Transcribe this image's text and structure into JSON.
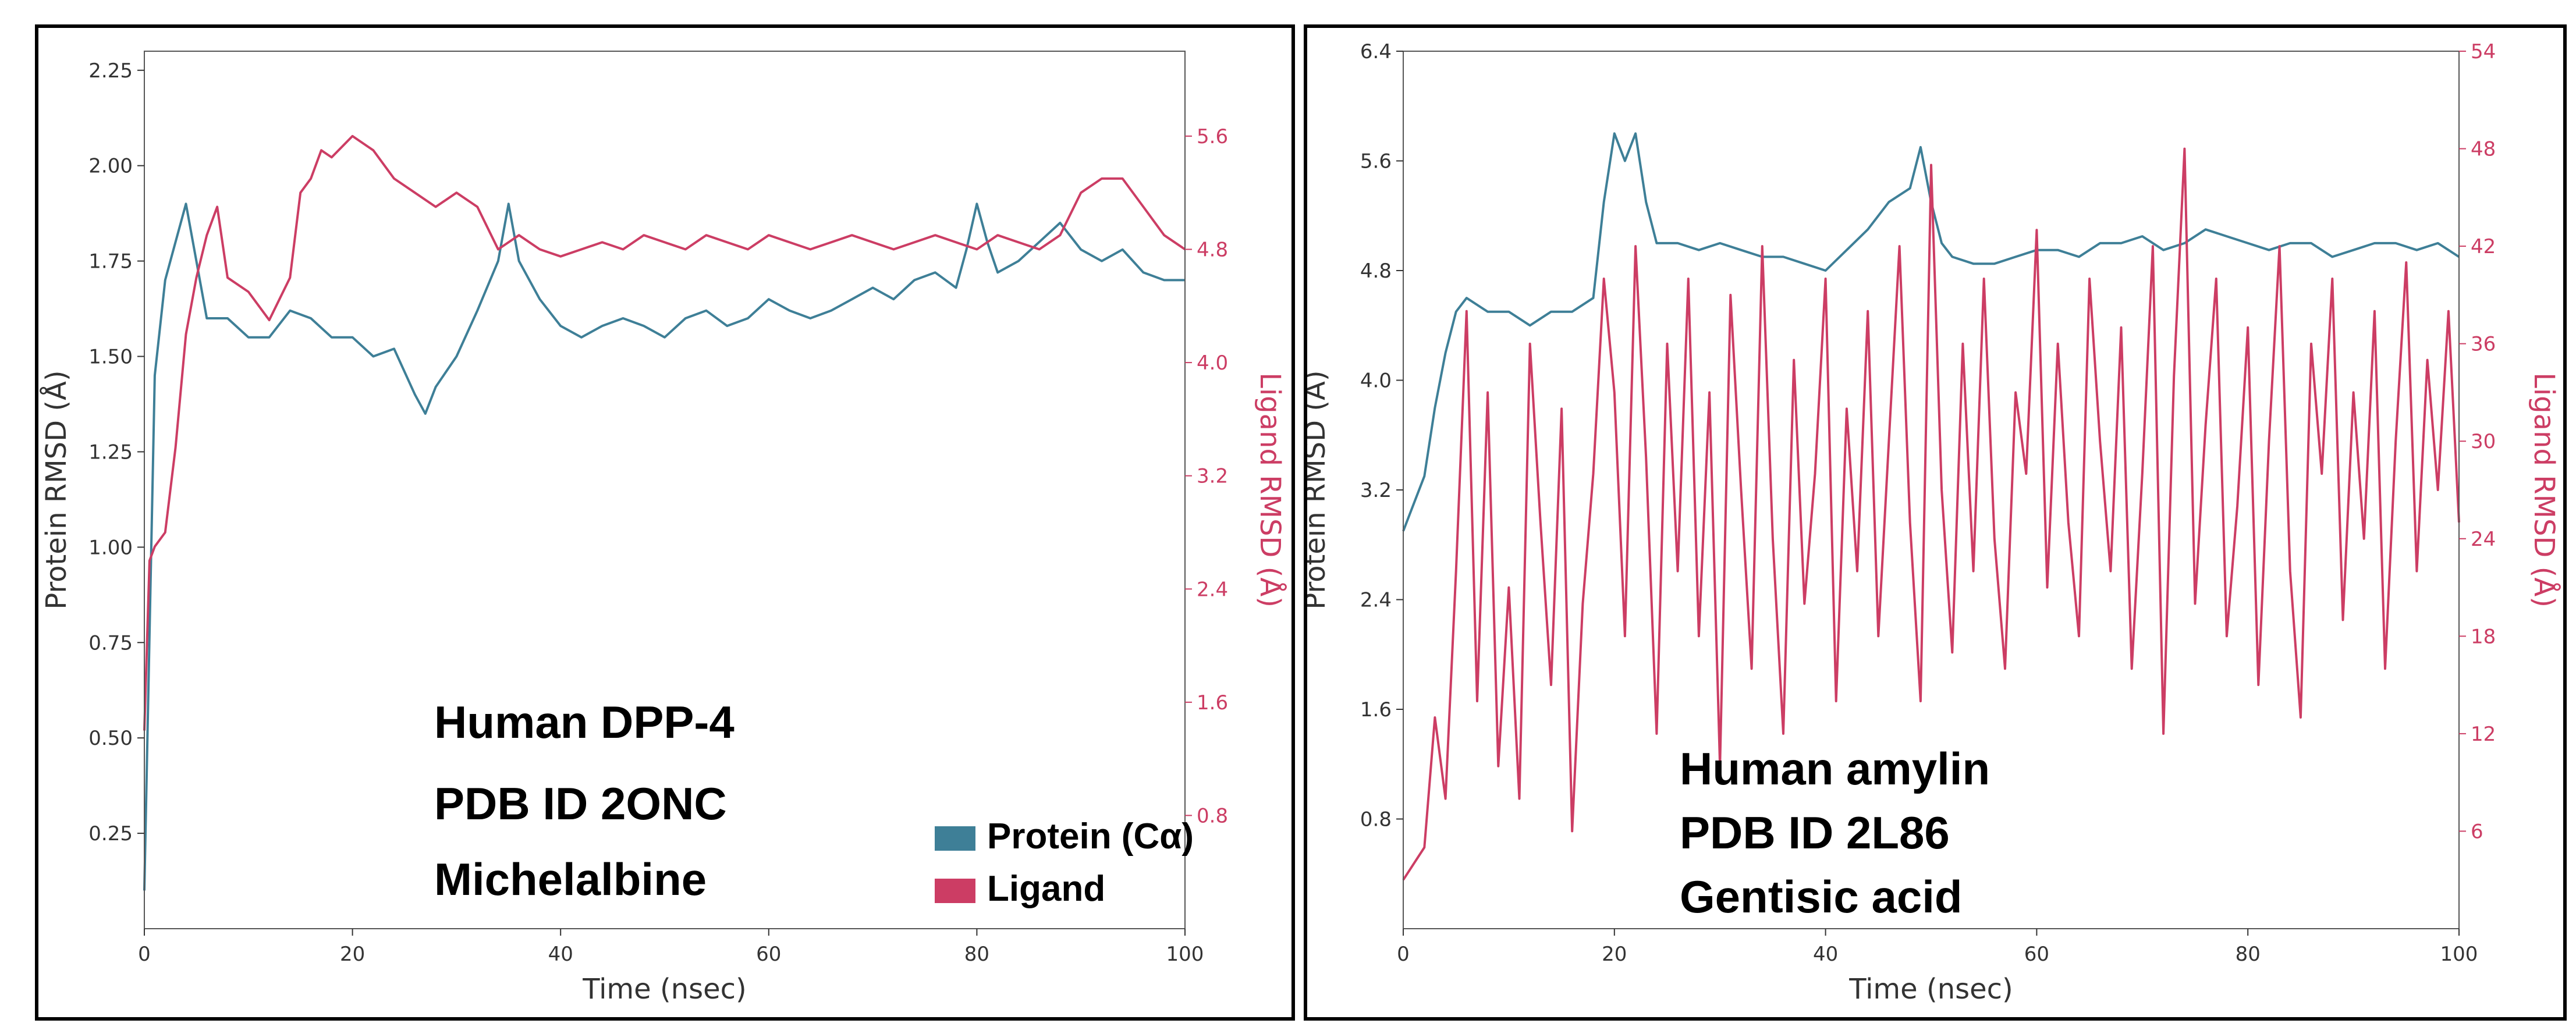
{
  "colors": {
    "protein": "#3e7f97",
    "ligand": "#cc3d64",
    "axis": "#333333"
  },
  "chart_data": [
    {
      "type": "line",
      "panel": "left",
      "xlabel": "Time (nsec)",
      "ylabel": "Protein RMSD (Å)",
      "y2label": "Ligand RMSD (Å)",
      "xlim": [
        0,
        100
      ],
      "ylim": [
        0,
        2.3
      ],
      "y2lim": [
        0,
        6.2
      ],
      "xticks": [
        "0",
        "20",
        "40",
        "60",
        "80",
        "100"
      ],
      "yticks": [
        "0.25",
        "0.50",
        "0.75",
        "1.00",
        "1.25",
        "1.50",
        "1.75",
        "2.00",
        "2.25"
      ],
      "y2ticks": [
        "0.8",
        "1.6",
        "2.4",
        "3.2",
        "4.0",
        "4.8",
        "5.6"
      ],
      "annotation": [
        "Human DPP-4",
        "PDB ID  2ONC",
        "Michelalbine"
      ],
      "legend": [
        "Protein (Cα)",
        "Ligand"
      ],
      "legend_position": "lower-right",
      "series": [
        {
          "name": "Protein (Cα)",
          "axis": "left",
          "x": [
            0,
            1,
            2,
            3,
            4,
            5,
            6,
            8,
            10,
            12,
            14,
            16,
            18,
            20,
            22,
            24,
            26,
            27,
            28,
            30,
            32,
            34,
            35,
            36,
            38,
            40,
            42,
            44,
            46,
            48,
            50,
            52,
            54,
            56,
            58,
            60,
            62,
            64,
            66,
            68,
            70,
            72,
            74,
            76,
            78,
            79,
            80,
            81,
            82,
            84,
            86,
            88,
            90,
            92,
            94,
            96,
            98,
            100
          ],
          "values": [
            0.1,
            1.45,
            1.7,
            1.8,
            1.9,
            1.75,
            1.6,
            1.6,
            1.55,
            1.55,
            1.62,
            1.6,
            1.55,
            1.55,
            1.5,
            1.52,
            1.4,
            1.35,
            1.42,
            1.5,
            1.62,
            1.75,
            1.9,
            1.75,
            1.65,
            1.58,
            1.55,
            1.58,
            1.6,
            1.58,
            1.55,
            1.6,
            1.62,
            1.58,
            1.6,
            1.65,
            1.62,
            1.6,
            1.62,
            1.65,
            1.68,
            1.65,
            1.7,
            1.72,
            1.68,
            1.78,
            1.9,
            1.8,
            1.72,
            1.75,
            1.8,
            1.85,
            1.78,
            1.75,
            1.78,
            1.72,
            1.7,
            1.7
          ]
        },
        {
          "name": "Ligand",
          "axis": "right",
          "x": [
            0,
            0.5,
            1,
            2,
            3,
            4,
            5,
            6,
            7,
            8,
            10,
            12,
            14,
            15,
            16,
            17,
            18,
            20,
            22,
            24,
            26,
            28,
            30,
            32,
            34,
            36,
            38,
            40,
            42,
            44,
            46,
            48,
            50,
            52,
            54,
            56,
            58,
            60,
            62,
            64,
            66,
            68,
            70,
            72,
            74,
            76,
            78,
            80,
            82,
            84,
            86,
            88,
            90,
            92,
            94,
            96,
            98,
            100
          ],
          "values": [
            1.4,
            2.6,
            2.7,
            2.8,
            3.4,
            4.2,
            4.6,
            4.9,
            5.1,
            4.6,
            4.5,
            4.3,
            4.6,
            5.2,
            5.3,
            5.5,
            5.45,
            5.6,
            5.5,
            5.3,
            5.2,
            5.1,
            5.2,
            5.1,
            4.8,
            4.9,
            4.8,
            4.75,
            4.8,
            4.85,
            4.8,
            4.9,
            4.85,
            4.8,
            4.9,
            4.85,
            4.8,
            4.9,
            4.85,
            4.8,
            4.85,
            4.9,
            4.85,
            4.8,
            4.85,
            4.9,
            4.85,
            4.8,
            4.9,
            4.85,
            4.8,
            4.9,
            5.2,
            5.3,
            5.3,
            5.1,
            4.9,
            4.8
          ]
        }
      ]
    },
    {
      "type": "line",
      "panel": "right",
      "xlabel": "Time (nsec)",
      "ylabel": "Protein RMSD (Å)",
      "y2label": "Ligand RMSD (Å)",
      "xlim": [
        0,
        100
      ],
      "ylim": [
        0,
        6.4
      ],
      "y2lim": [
        0,
        54
      ],
      "xticks": [
        "0",
        "20",
        "40",
        "60",
        "80",
        "100"
      ],
      "yticks": [
        "0.8",
        "1.6",
        "2.4",
        "3.2",
        "4.0",
        "4.8",
        "5.6",
        "6.4"
      ],
      "y2ticks": [
        "6",
        "12",
        "18",
        "24",
        "30",
        "36",
        "42",
        "48",
        "54"
      ],
      "annotation": [
        "Human amylin",
        "PDB ID 2L86",
        "Gentisic acid"
      ],
      "series": [
        {
          "name": "Protein (Cα)",
          "axis": "left",
          "x": [
            0,
            1,
            2,
            3,
            4,
            5,
            6,
            8,
            10,
            12,
            14,
            16,
            18,
            19,
            20,
            21,
            22,
            23,
            24,
            26,
            28,
            30,
            32,
            34,
            36,
            38,
            40,
            42,
            44,
            46,
            48,
            49,
            50,
            51,
            52,
            54,
            56,
            58,
            60,
            62,
            64,
            66,
            68,
            70,
            72,
            74,
            76,
            78,
            80,
            82,
            84,
            86,
            88,
            90,
            92,
            94,
            96,
            98,
            100
          ],
          "values": [
            2.9,
            3.1,
            3.3,
            3.8,
            4.2,
            4.5,
            4.6,
            4.5,
            4.5,
            4.4,
            4.5,
            4.5,
            4.6,
            5.3,
            5.8,
            5.6,
            5.8,
            5.3,
            5.0,
            5.0,
            4.95,
            5.0,
            4.95,
            4.9,
            4.9,
            4.85,
            4.8,
            4.95,
            5.1,
            5.3,
            5.4,
            5.7,
            5.3,
            5.0,
            4.9,
            4.85,
            4.85,
            4.9,
            4.95,
            4.95,
            4.9,
            5.0,
            5.0,
            5.05,
            4.95,
            5.0,
            5.1,
            5.05,
            5.0,
            4.95,
            5.0,
            5.0,
            4.9,
            4.95,
            5.0,
            5.0,
            4.95,
            5.0,
            4.9
          ]
        },
        {
          "name": "Ligand",
          "axis": "right",
          "x": [
            0,
            1,
            2,
            3,
            4,
            5,
            6,
            7,
            8,
            9,
            10,
            11,
            12,
            13,
            14,
            15,
            16,
            17,
            18,
            19,
            20,
            21,
            22,
            23,
            24,
            25,
            26,
            27,
            28,
            29,
            30,
            31,
            32,
            33,
            34,
            35,
            36,
            37,
            38,
            39,
            40,
            41,
            42,
            43,
            44,
            45,
            46,
            47,
            48,
            49,
            50,
            51,
            52,
            53,
            54,
            55,
            56,
            57,
            58,
            59,
            60,
            61,
            62,
            63,
            64,
            65,
            66,
            67,
            68,
            69,
            70,
            71,
            72,
            73,
            74,
            75,
            76,
            77,
            78,
            79,
            80,
            81,
            82,
            83,
            84,
            85,
            86,
            87,
            88,
            89,
            90,
            91,
            92,
            93,
            94,
            95,
            96,
            97,
            98,
            99,
            100
          ],
          "values": [
            3,
            4,
            5,
            13,
            8,
            22,
            38,
            14,
            33,
            10,
            21,
            8,
            36,
            25,
            15,
            32,
            6,
            20,
            28,
            40,
            33,
            18,
            42,
            29,
            12,
            36,
            22,
            40,
            18,
            33,
            10,
            39,
            27,
            16,
            42,
            24,
            12,
            35,
            20,
            28,
            40,
            14,
            32,
            22,
            38,
            18,
            30,
            42,
            25,
            14,
            47,
            27,
            17,
            36,
            22,
            40,
            24,
            16,
            33,
            28,
            43,
            21,
            36,
            25,
            18,
            40,
            30,
            22,
            37,
            16,
            28,
            42,
            12,
            34,
            48,
            20,
            31,
            40,
            18,
            26,
            37,
            15,
            30,
            42,
            22,
            13,
            36,
            28,
            40,
            19,
            33,
            24,
            38,
            16,
            30,
            41,
            22,
            35,
            27,
            38,
            25
          ]
        }
      ]
    }
  ]
}
